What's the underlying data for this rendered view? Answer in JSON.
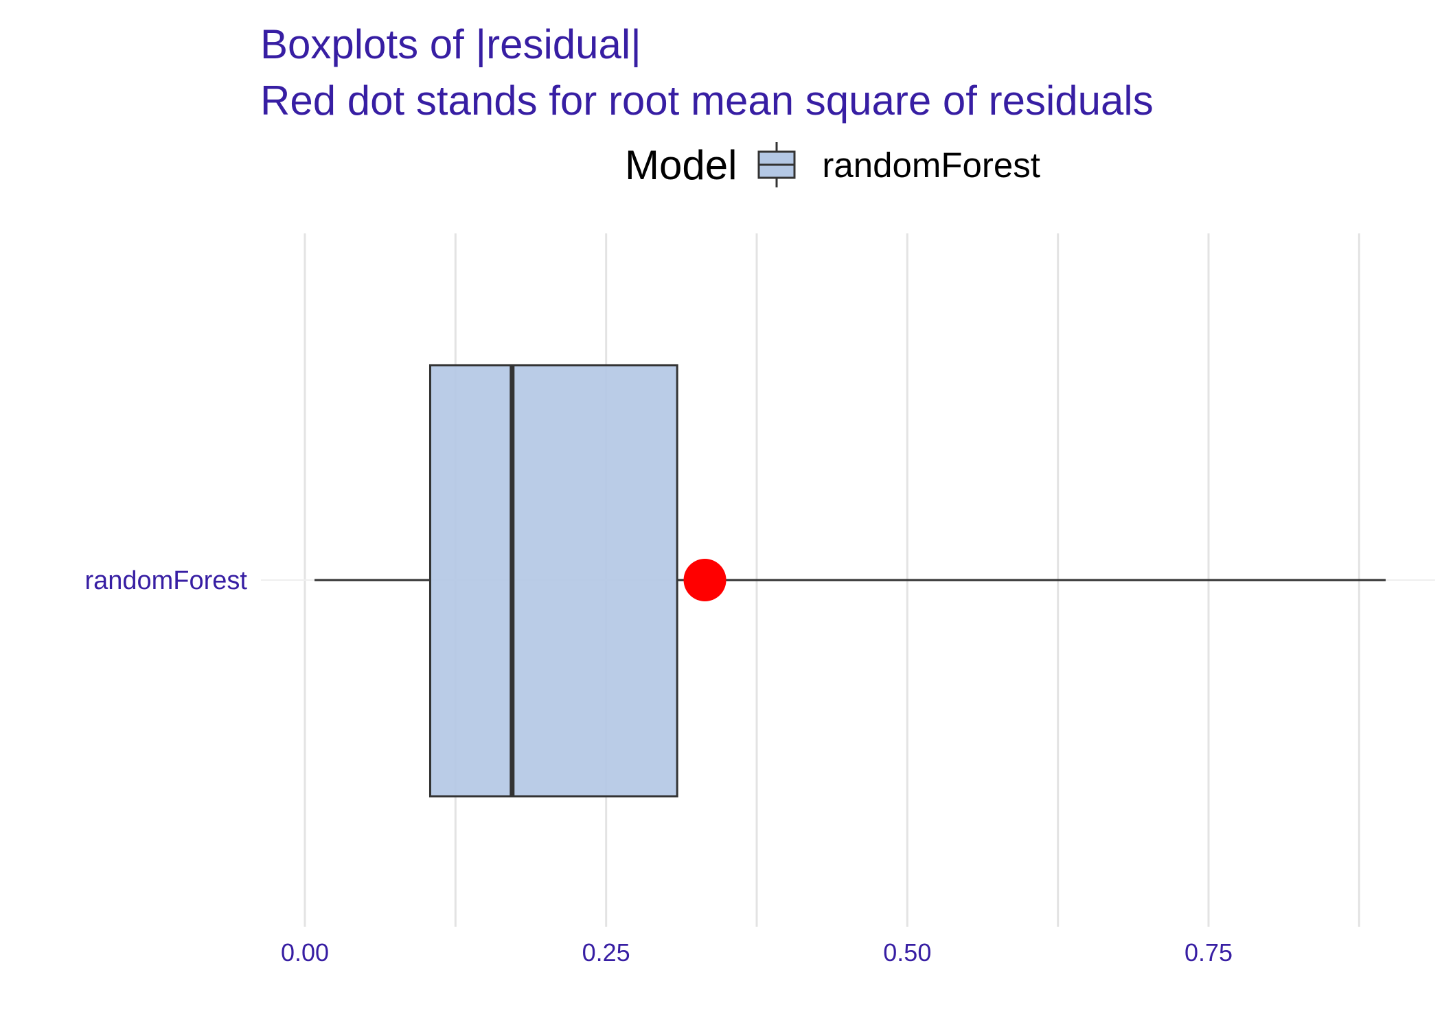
{
  "title": "Boxplots of |residual|",
  "subtitle": "Red dot stands for root mean square of residuals",
  "legend": {
    "title": "Model",
    "label": "randomForest"
  },
  "colors": {
    "text": "#371ea3",
    "grid": "#e3e3e3",
    "box_fill": "#b4c8e5",
    "box_line": "#333333",
    "rms_dot": "#ff0000"
  },
  "chart_data": {
    "type": "boxplot",
    "orientation": "horizontal",
    "title": "Boxplots of |residual|",
    "subtitle": "Red dot stands for root mean square of residuals",
    "xlabel": "",
    "ylabel": "",
    "xlim": [
      -0.014,
      0.94
    ],
    "x_ticks": [
      "0.00",
      "0.25",
      "0.50",
      "0.75"
    ],
    "x_tick_values": [
      0,
      0.25,
      0.5,
      0.75
    ],
    "grid": true,
    "legend_position": "top",
    "categories": [
      "randomForest"
    ],
    "series": [
      {
        "name": "randomForest",
        "whisker_low": 0.008,
        "q1": 0.104,
        "median": 0.172,
        "q3": 0.309,
        "whisker_high": 0.897,
        "rms": 0.332
      }
    ]
  }
}
